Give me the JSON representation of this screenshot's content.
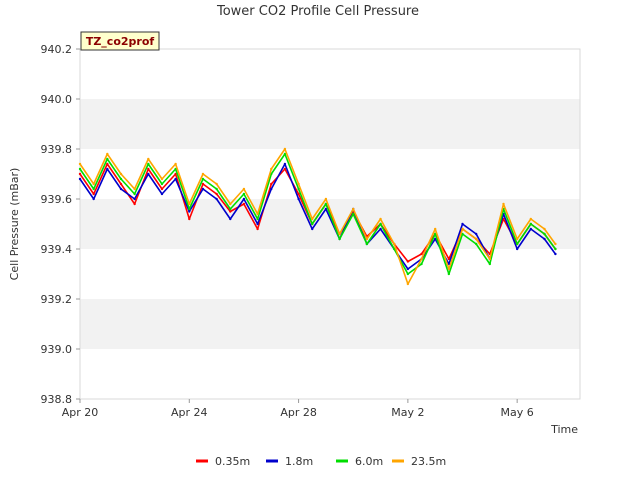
{
  "chart_data": {
    "type": "line",
    "title": "Tower CO2 Profile Cell Pressure",
    "xlabel": "Time",
    "ylabel": "Cell Pressure (mBar)",
    "site_tag": "TZ_co2prof",
    "x_unit": "days since Apr 20",
    "xlim": [
      0,
      18.3
    ],
    "ylim": [
      938.8,
      940.2
    ],
    "y_ticks": [
      938.8,
      939.0,
      939.2,
      939.4,
      939.6,
      939.8,
      940.0,
      940.2
    ],
    "y_tick_labels": [
      "938.8",
      "939.0",
      "939.2",
      "939.4",
      "939.6",
      "939.8",
      "940.0",
      "940.2"
    ],
    "x_ticks": [
      0,
      4,
      8,
      12,
      16
    ],
    "x_tick_labels": [
      "Apr 20",
      "Apr 24",
      "Apr 28",
      "May 2",
      "May 6"
    ],
    "grid": "horizontal bands",
    "legend_position": "bottom-center",
    "colors": {
      "0.35m": "#ff0000",
      "1.8m": "#0000cc",
      "6.0m": "#00dd00",
      "23.5m": "#ffa500",
      "band": "#f2f2f2",
      "tag_bg": "#ffffcc",
      "tag_text": "#8b0000"
    },
    "series": [
      {
        "name": "0.35m",
        "x": [
          0,
          0.5,
          1,
          1.5,
          2,
          2.5,
          3,
          3.5,
          4,
          4.5,
          5,
          5.5,
          6,
          6.5,
          7,
          7.5,
          8,
          8.5,
          9,
          9.5,
          10,
          10.5,
          11,
          11.5,
          12,
          12.5,
          13,
          13.5,
          14,
          14.5,
          15,
          15.5,
          16,
          16.5,
          17,
          17.4
        ],
        "y": [
          939.7,
          939.62,
          939.74,
          939.66,
          939.58,
          939.72,
          939.64,
          939.7,
          939.52,
          939.66,
          939.62,
          939.55,
          939.58,
          939.48,
          939.66,
          939.72,
          939.62,
          939.5,
          939.58,
          939.46,
          939.55,
          939.45,
          939.5,
          939.42,
          939.35,
          939.38,
          939.46,
          939.36,
          939.48,
          939.44,
          939.38,
          939.52,
          939.42,
          939.5,
          939.46,
          939.4
        ]
      },
      {
        "name": "1.8m",
        "x": [
          0,
          0.5,
          1,
          1.5,
          2,
          2.5,
          3,
          3.5,
          4,
          4.5,
          5,
          5.5,
          6,
          6.5,
          7,
          7.5,
          8,
          8.5,
          9,
          9.5,
          10,
          10.5,
          11,
          11.5,
          12,
          12.5,
          13,
          13.5,
          14,
          14.5,
          15,
          15.5,
          16,
          16.5,
          17,
          17.4
        ],
        "y": [
          939.68,
          939.6,
          939.72,
          939.64,
          939.6,
          939.7,
          939.62,
          939.68,
          939.55,
          939.64,
          939.6,
          939.52,
          939.6,
          939.5,
          939.64,
          939.74,
          939.6,
          939.48,
          939.56,
          939.44,
          939.56,
          939.42,
          939.48,
          939.4,
          939.32,
          939.36,
          939.44,
          939.34,
          939.5,
          939.46,
          939.36,
          939.54,
          939.4,
          939.48,
          939.44,
          939.38
        ]
      },
      {
        "name": "6.0m",
        "x": [
          0,
          0.5,
          1,
          1.5,
          2,
          2.5,
          3,
          3.5,
          4,
          4.5,
          5,
          5.5,
          6,
          6.5,
          7,
          7.5,
          8,
          8.5,
          9,
          9.5,
          10,
          10.5,
          11,
          11.5,
          12,
          12.5,
          13,
          13.5,
          14,
          14.5,
          15,
          15.5,
          16,
          16.5,
          17,
          17.4
        ],
        "y": [
          939.72,
          939.64,
          939.76,
          939.68,
          939.62,
          939.74,
          939.66,
          939.72,
          939.56,
          939.68,
          939.64,
          939.56,
          939.62,
          939.52,
          939.7,
          939.78,
          939.64,
          939.5,
          939.58,
          939.44,
          939.54,
          939.42,
          939.5,
          939.4,
          939.3,
          939.34,
          939.46,
          939.3,
          939.46,
          939.42,
          939.34,
          939.56,
          939.42,
          939.5,
          939.46,
          939.4
        ]
      },
      {
        "name": "23.5m",
        "x": [
          0,
          0.5,
          1,
          1.5,
          2,
          2.5,
          3,
          3.5,
          4,
          4.5,
          5,
          5.5,
          6,
          6.5,
          7,
          7.5,
          8,
          8.5,
          9,
          9.5,
          10,
          10.5,
          11,
          11.5,
          12,
          12.5,
          13,
          13.5,
          14,
          14.5,
          15,
          15.5,
          16,
          16.5,
          17,
          17.4
        ],
        "y": [
          939.74,
          939.66,
          939.78,
          939.7,
          939.64,
          939.76,
          939.68,
          939.74,
          939.58,
          939.7,
          939.66,
          939.58,
          939.64,
          939.54,
          939.72,
          939.8,
          939.66,
          939.52,
          939.6,
          939.46,
          939.56,
          939.44,
          939.52,
          939.42,
          939.26,
          939.36,
          939.48,
          939.32,
          939.48,
          939.44,
          939.36,
          939.58,
          939.44,
          939.52,
          939.48,
          939.42
        ]
      }
    ]
  }
}
